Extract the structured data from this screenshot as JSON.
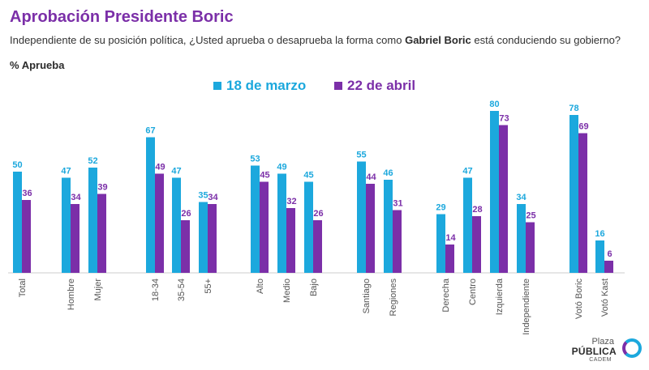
{
  "header": {
    "title": "Aprobación Presidente Boric",
    "question_before": "Independiente de su posición política, ¿Usted aprueba o desaprueba la forma como ",
    "question_bold": "Gabriel Boric",
    "question_after": " está conduciendo su gobierno?",
    "unit_label": "% Aprueba"
  },
  "legend": {
    "series1": "18 de marzo",
    "series2": "22 de abril"
  },
  "colors": {
    "series1": "#1ca8dd",
    "series2": "#7b2fa8",
    "title": "#7b2fa8"
  },
  "logo": {
    "line1": "Plaza",
    "line2": "PÚBLICA",
    "line3": "CADEM"
  },
  "chart_data": {
    "type": "bar",
    "title": "Aprobación Presidente Boric",
    "ylabel": "% Aprueba",
    "ylim": [
      0,
      80
    ],
    "grid": false,
    "legend_position": "top",
    "categories": [
      "Total",
      "Hombre",
      "Mujer",
      "18-34",
      "35-54",
      "55+",
      "Alto",
      "Medio",
      "Bajo",
      "Santiago",
      "Regiones",
      "Derecha",
      "Centro",
      "Izquierda",
      "Independiente",
      "Votó Boric",
      "Votó Kast"
    ],
    "groups": [
      [
        "Total"
      ],
      [
        "Hombre",
        "Mujer"
      ],
      [
        "18-34",
        "35-54",
        "55+"
      ],
      [
        "Alto",
        "Medio",
        "Bajo"
      ],
      [
        "Santiago",
        "Regiones"
      ],
      [
        "Derecha",
        "Centro",
        "Izquierda",
        "Independiente"
      ],
      [
        "Votó Boric",
        "Votó Kast"
      ]
    ],
    "series": [
      {
        "name": "18 de marzo",
        "values": [
          50,
          47,
          52,
          67,
          47,
          35,
          53,
          49,
          45,
          55,
          46,
          29,
          47,
          80,
          34,
          78,
          16
        ]
      },
      {
        "name": "22 de abril",
        "values": [
          36,
          34,
          39,
          49,
          26,
          34,
          45,
          32,
          26,
          44,
          31,
          14,
          28,
          73,
          25,
          69,
          6
        ]
      }
    ]
  }
}
